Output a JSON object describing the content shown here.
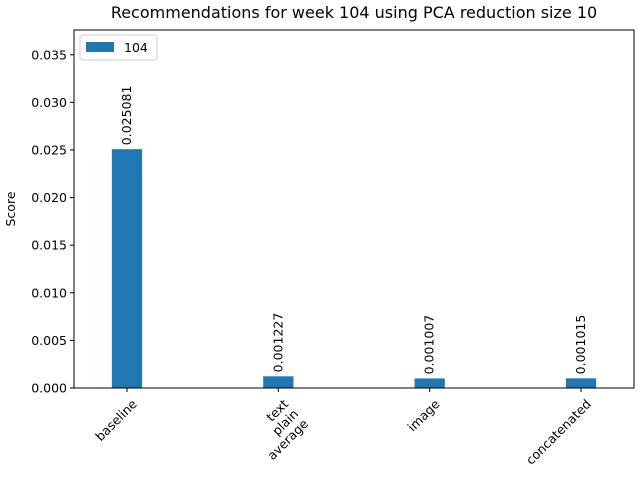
{
  "chart_data": {
    "type": "bar",
    "title": "Recommendations for week 104 using PCA reduction size 10",
    "xlabel": "",
    "ylabel": "Score",
    "categories": [
      "baseline",
      "text\nplain\naverage",
      "image",
      "concatenated"
    ],
    "series": [
      {
        "name": "104",
        "color": "#1f77b4",
        "values": [
          0.025081,
          0.001227,
          0.001007,
          0.001015
        ],
        "labels": [
          "0.025081",
          "0.001227",
          "0.001007",
          "0.001015"
        ]
      }
    ],
    "ylim": [
      0,
      0.0376
    ],
    "yticks": [
      0.0,
      0.005,
      0.01,
      0.015,
      0.02,
      0.025,
      0.03,
      0.035
    ],
    "ytick_labels": [
      "0.000",
      "0.005",
      "0.010",
      "0.015",
      "0.020",
      "0.025",
      "0.030",
      "0.035"
    ],
    "grid": false,
    "legend": "top-left",
    "xtick_rotation": 45
  }
}
